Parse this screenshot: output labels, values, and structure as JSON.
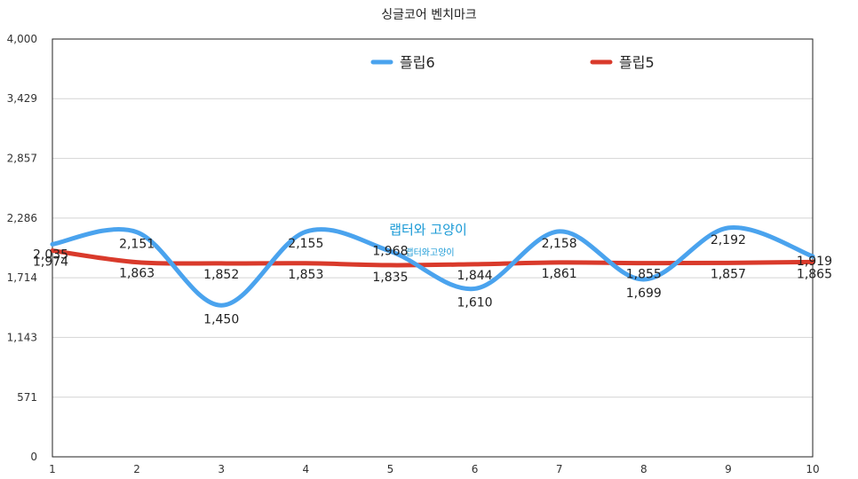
{
  "chart_data": {
    "type": "line",
    "title": "싱글코어 벤치마크",
    "xlabel": "",
    "ylabel": "",
    "x": [
      1,
      2,
      3,
      4,
      5,
      6,
      7,
      8,
      9,
      10
    ],
    "x_ticks": [
      "1",
      "2",
      "3",
      "4",
      "5",
      "6",
      "7",
      "8",
      "9",
      "10"
    ],
    "ylim": [
      0,
      4000
    ],
    "y_ticks": [
      0,
      571,
      1143,
      1714,
      2286,
      2857,
      3429,
      4000
    ],
    "y_tick_labels": [
      "0",
      "571",
      "1,143",
      "1,714",
      "2,286",
      "2,857",
      "3,429",
      "4,000"
    ],
    "grid": true,
    "legend_position": "top",
    "series": [
      {
        "name": "플립6",
        "color": "#4aa3ee",
        "values": [
          2035,
          2151,
          1450,
          2155,
          1968,
          1610,
          2158,
          1699,
          2192,
          1919
        ],
        "labels": [
          "2,035",
          "2,151",
          "1,450",
          "2,155",
          "1,968",
          "1,610",
          "2,158",
          "1,699",
          "2,192",
          "1,919"
        ]
      },
      {
        "name": "플립5",
        "color": "#d93a2b",
        "values": [
          1974,
          1863,
          1852,
          1853,
          1835,
          1844,
          1861,
          1855,
          1857,
          1865
        ],
        "labels": [
          "1,974",
          "1,863",
          "1,852",
          "1,853",
          "1,835",
          "1,844",
          "1,861",
          "1,855",
          "1,857",
          "1,865"
        ]
      }
    ]
  },
  "watermark": {
    "main": "랩터와 고양이",
    "sub": "랩터와고양이"
  }
}
